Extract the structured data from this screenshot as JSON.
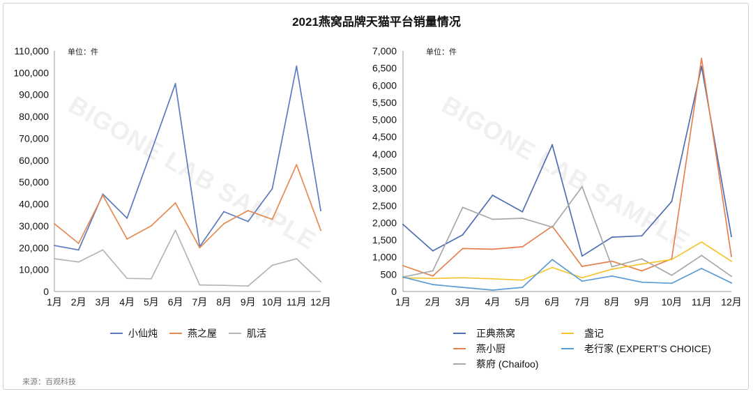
{
  "title": "2021燕窝品牌天猫平台销量情况",
  "source": "来源：百观科技",
  "watermark": "BIGONE LAB SAMPLE",
  "chart_data": [
    {
      "type": "line",
      "unit": "单位：件",
      "categories": [
        "1月",
        "2月",
        "3月",
        "4月",
        "5月",
        "6月",
        "7月",
        "8月",
        "9月",
        "10月",
        "11月",
        "12月"
      ],
      "ylim": [
        0,
        110000
      ],
      "yticks": [
        0,
        10000,
        20000,
        30000,
        40000,
        50000,
        60000,
        70000,
        80000,
        90000,
        100000,
        110000
      ],
      "ytick_labels": [
        "0",
        "10,000",
        "20,000",
        "30,000",
        "40,000",
        "50,000",
        "60,000",
        "70,000",
        "80,000",
        "90,000",
        "100,000",
        "110,000"
      ],
      "grid": false,
      "legend": "bottom",
      "series": [
        {
          "name": "小仙炖",
          "color": "#5b7bc0",
          "values": [
            21000,
            19000,
            44500,
            33500,
            64000,
            95000,
            20500,
            36500,
            32000,
            47000,
            103000,
            37000
          ]
        },
        {
          "name": "燕之屋",
          "color": "#e68a50",
          "values": [
            31000,
            22000,
            44000,
            24000,
            30000,
            40500,
            20000,
            31000,
            37000,
            33000,
            58000,
            28000
          ]
        },
        {
          "name": "肌活",
          "color": "#b4b4b4",
          "values": [
            15000,
            13500,
            19000,
            6000,
            5800,
            28000,
            3000,
            2800,
            2500,
            12000,
            15000,
            4500
          ]
        }
      ]
    },
    {
      "type": "line",
      "unit": "单位：件",
      "categories": [
        "1月",
        "2月",
        "3月",
        "4月",
        "5月",
        "6月",
        "7月",
        "8月",
        "9月",
        "10月",
        "11月",
        "12月"
      ],
      "ylim": [
        0,
        7000
      ],
      "yticks": [
        0,
        500,
        1000,
        1500,
        2000,
        2500,
        3000,
        3500,
        4000,
        4500,
        5000,
        5500,
        6000,
        6500,
        7000
      ],
      "ytick_labels": [
        "0",
        "500",
        "1,000",
        "1,500",
        "2,000",
        "2,500",
        "3,000",
        "3,500",
        "4,000",
        "4,500",
        "5,000",
        "5,500",
        "6,000",
        "6,500",
        "7,000"
      ],
      "grid": false,
      "legend": "bottom",
      "series": [
        {
          "name": "正典燕窝",
          "color": "#4f6fb3",
          "values": [
            1950,
            1180,
            1650,
            2800,
            2320,
            4270,
            1030,
            1580,
            1620,
            2620,
            6550,
            1600
          ]
        },
        {
          "name": "燕小厨",
          "color": "#e4814f",
          "values": [
            750,
            450,
            1250,
            1230,
            1300,
            1900,
            730,
            880,
            600,
            950,
            6780,
            1020
          ]
        },
        {
          "name": "蔡府 (Chaifoo)",
          "color": "#a8a8a8",
          "values": [
            420,
            600,
            2450,
            2100,
            2130,
            1870,
            3050,
            720,
            950,
            470,
            1050,
            440
          ]
        },
        {
          "name": "盏记",
          "color": "#f4c430",
          "values": [
            400,
            380,
            400,
            370,
            330,
            700,
            400,
            650,
            800,
            930,
            1440,
            880
          ]
        },
        {
          "name": "老行家 (EXPERT’S CHOICE)",
          "color": "#5b9bd5",
          "values": [
            420,
            200,
            120,
            40,
            120,
            930,
            300,
            450,
            270,
            240,
            670,
            250
          ]
        }
      ]
    }
  ]
}
